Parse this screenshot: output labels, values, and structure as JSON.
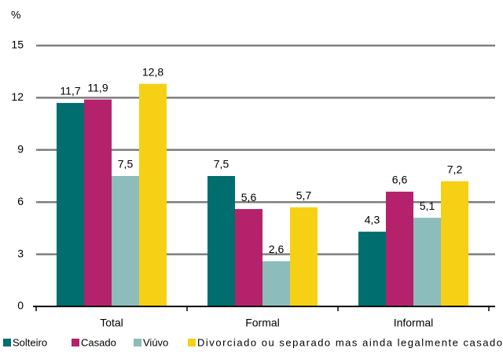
{
  "chart_data": {
    "type": "bar",
    "y_label": "%",
    "categories": [
      "Total",
      "Formal",
      "Informal"
    ],
    "series": [
      {
        "name": "Solteiro",
        "color": "#006e6e",
        "values": [
          11.7,
          7.5,
          4.3
        ],
        "value_labels": [
          "11,7",
          "7,5",
          "4,3"
        ]
      },
      {
        "name": "Casado",
        "color": "#b5226c",
        "values": [
          11.9,
          5.6,
          6.6
        ],
        "value_labels": [
          "11,9",
          "5,6",
          "6,6"
        ]
      },
      {
        "name": "Viúvo",
        "color": "#8cbcbc",
        "values": [
          7.5,
          2.6,
          5.1
        ],
        "value_labels": [
          "7,5",
          "2,6",
          "5,1"
        ]
      },
      {
        "name": "Divorciado ou separado mas ainda legalmente casado",
        "color": "#f6d014",
        "values": [
          12.8,
          5.7,
          7.2
        ],
        "value_labels": [
          "12,8",
          "5,7",
          "7,2"
        ]
      }
    ],
    "ylim": [
      0,
      15
    ],
    "yticks": [
      0,
      3,
      6,
      9,
      12,
      15
    ],
    "grid": true,
    "legend": "bottom"
  }
}
